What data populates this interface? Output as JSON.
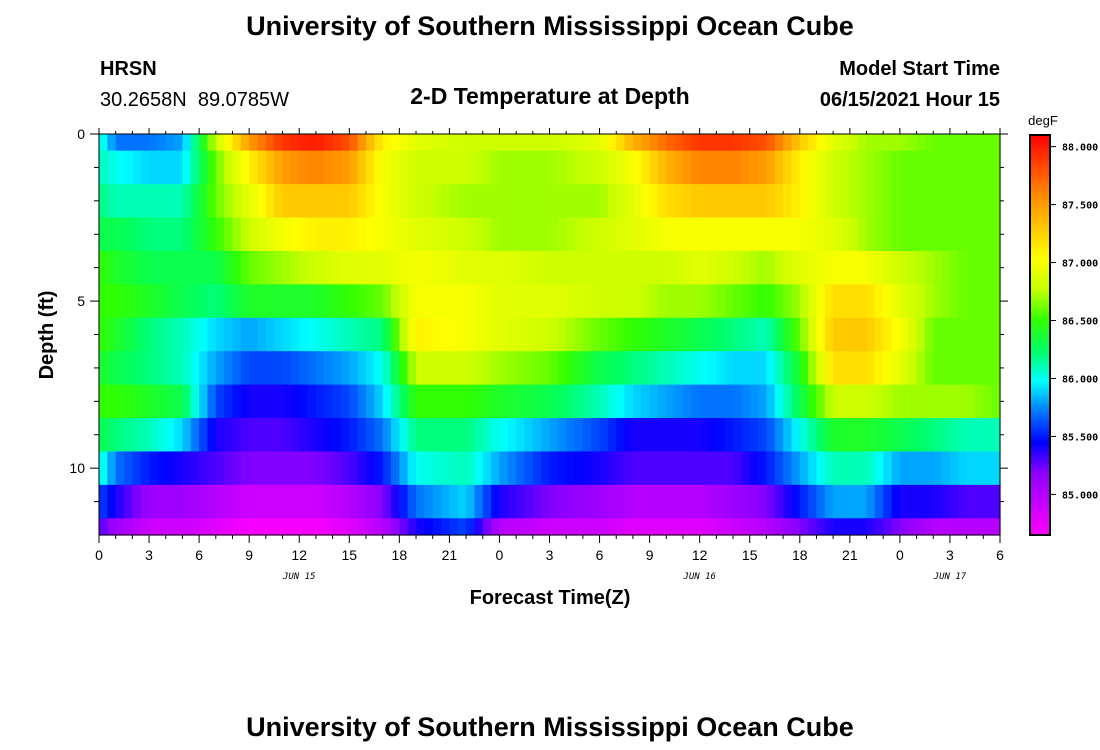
{
  "header": {
    "title": "University of Southern Mississippi Ocean Cube",
    "station": "HRSN",
    "coords": "30.2658N  89.0785W",
    "plot_title": "2-D Temperature at Depth",
    "model_label": "Model Start Time",
    "model_time": "06/15/2021 Hour 15"
  },
  "footer": {
    "title": "University of Southern Mississippi Ocean Cube"
  },
  "colors": {
    "palette": [
      "#ff00ff",
      "#c800ff",
      "#8c00ff",
      "#0000ff",
      "#0078ff",
      "#00ffff",
      "#00ff64",
      "#32ff00",
      "#c8ff00",
      "#ffff00",
      "#ffc800",
      "#ff8c00",
      "#ff4600",
      "#ff0000"
    ]
  },
  "chart_data": {
    "type": "heatmap",
    "title": "2-D Temperature at Depth",
    "xlabel": "Forecast Time(Z)",
    "ylabel": "Depth (ft)",
    "units": "degF",
    "xlim": [
      0,
      54
    ],
    "ylim": [
      0,
      12
    ],
    "x_ticks": [
      0,
      3,
      6,
      9,
      12,
      15,
      18,
      21,
      24,
      27,
      30,
      33,
      36,
      39,
      42,
      45,
      48,
      51,
      54
    ],
    "x_tick_labels": [
      "0",
      "3",
      "6",
      "9",
      "12",
      "15",
      "18",
      "21",
      "0",
      "3",
      "6",
      "9",
      "12",
      "15",
      "18",
      "21",
      "0",
      "3",
      "6"
    ],
    "y_ticks": [
      0,
      5,
      10
    ],
    "y_tick_labels": [
      "0",
      "5",
      "10"
    ],
    "y_minor_ticks": [
      1,
      2,
      3,
      4,
      6,
      7,
      8,
      9,
      11
    ],
    "date_labels": [
      {
        "x": 12,
        "label": "JUN 15"
      },
      {
        "x": 36,
        "label": "JUN 16"
      },
      {
        "x": 51,
        "label": "JUN 17"
      }
    ],
    "colorbar": {
      "min": 84.65,
      "max": 88.1,
      "ticks": [
        85.0,
        85.5,
        86.0,
        86.5,
        87.0,
        87.5,
        88.0
      ],
      "tick_labels": [
        "85.000",
        "85.500",
        "86.000",
        "86.500",
        "87.000",
        "87.500",
        "88.000"
      ]
    },
    "depth_layers": [
      0,
      1,
      2,
      3,
      4,
      5,
      6,
      7,
      8,
      9,
      10,
      11,
      12
    ],
    "keyframes_hours": [
      0,
      1,
      3,
      5,
      7,
      9,
      11,
      13,
      15,
      17,
      19,
      22,
      24,
      27,
      30,
      32,
      34,
      36,
      38,
      40,
      42,
      44,
      46,
      48,
      50,
      52,
      54
    ],
    "temperature_degF": [
      [
        86.1,
        85.7,
        85.7,
        85.8,
        86.8,
        87.5,
        87.9,
        88.0,
        87.8,
        87.1,
        86.9,
        86.8,
        86.8,
        86.8,
        86.9,
        87.4,
        87.7,
        87.9,
        87.9,
        87.8,
        87.3,
        86.9,
        86.7,
        86.7,
        86.6,
        86.6,
        86.6
      ],
      [
        86.1,
        86.0,
        85.9,
        85.9,
        86.6,
        87.1,
        87.5,
        87.6,
        87.5,
        87.0,
        86.8,
        86.8,
        86.7,
        86.7,
        86.8,
        87.0,
        87.4,
        87.6,
        87.6,
        87.5,
        87.1,
        86.8,
        86.7,
        86.6,
        86.6,
        86.6,
        86.6
      ],
      [
        86.2,
        86.1,
        86.1,
        86.1,
        86.6,
        86.9,
        87.3,
        87.3,
        87.3,
        87.0,
        86.8,
        86.7,
        86.7,
        86.7,
        86.7,
        86.9,
        87.2,
        87.3,
        87.3,
        87.3,
        87.1,
        86.8,
        86.7,
        86.6,
        86.6,
        86.6,
        86.6
      ],
      [
        86.3,
        86.3,
        86.2,
        86.2,
        86.5,
        86.8,
        87.0,
        87.1,
        87.1,
        87.0,
        86.9,
        86.8,
        86.7,
        86.7,
        86.8,
        86.9,
        87.0,
        87.0,
        87.0,
        87.0,
        87.0,
        86.9,
        86.7,
        86.6,
        86.6,
        86.6,
        86.6
      ],
      [
        86.5,
        86.4,
        86.3,
        86.3,
        86.3,
        86.6,
        86.7,
        86.8,
        86.9,
        86.9,
        87.0,
        86.9,
        86.9,
        86.8,
        86.8,
        86.8,
        86.8,
        86.9,
        86.8,
        86.7,
        86.9,
        87.0,
        87.0,
        86.8,
        86.7,
        86.6,
        86.6
      ],
      [
        86.5,
        86.5,
        86.4,
        86.3,
        86.2,
        86.4,
        86.4,
        86.4,
        86.5,
        86.6,
        87.0,
        87.0,
        86.9,
        86.9,
        86.8,
        86.8,
        86.7,
        86.7,
        86.6,
        86.5,
        86.7,
        87.2,
        87.2,
        86.9,
        86.7,
        86.6,
        86.6
      ],
      [
        86.5,
        86.4,
        86.2,
        86.1,
        85.9,
        85.8,
        85.9,
        86.0,
        86.1,
        86.2,
        87.1,
        87.0,
        86.9,
        86.8,
        86.6,
        86.5,
        86.4,
        86.3,
        86.2,
        86.1,
        86.6,
        87.3,
        87.3,
        87.0,
        86.6,
        86.6,
        86.6
      ],
      [
        86.4,
        86.3,
        86.2,
        86.1,
        85.8,
        85.6,
        85.6,
        85.7,
        85.8,
        86.0,
        86.8,
        86.8,
        86.7,
        86.6,
        86.3,
        86.2,
        86.1,
        86.0,
        85.9,
        85.9,
        86.4,
        87.2,
        87.2,
        86.9,
        86.6,
        86.6,
        86.6
      ],
      [
        86.5,
        86.5,
        86.4,
        86.3,
        85.6,
        85.4,
        85.4,
        85.5,
        85.6,
        85.9,
        86.5,
        86.5,
        86.4,
        86.3,
        86.1,
        85.9,
        85.8,
        85.7,
        85.7,
        85.8,
        86.3,
        86.8,
        86.8,
        86.7,
        86.7,
        86.7,
        86.6
      ],
      [
        86.3,
        86.2,
        86.1,
        85.9,
        85.4,
        85.3,
        85.3,
        85.4,
        85.5,
        85.7,
        86.2,
        86.2,
        86.0,
        85.8,
        85.6,
        85.4,
        85.4,
        85.4,
        85.5,
        85.6,
        86.0,
        86.4,
        86.4,
        86.3,
        86.2,
        86.1,
        86.1
      ],
      [
        86.1,
        85.7,
        85.5,
        85.4,
        85.3,
        85.2,
        85.2,
        85.2,
        85.3,
        85.5,
        86.0,
        86.1,
        85.8,
        85.5,
        85.4,
        85.3,
        85.3,
        85.3,
        85.3,
        85.5,
        85.8,
        86.1,
        86.1,
        85.8,
        85.8,
        85.9,
        85.9
      ],
      [
        85.6,
        85.4,
        85.1,
        85.1,
        85.0,
        84.9,
        84.9,
        84.9,
        85.0,
        85.2,
        85.7,
        85.9,
        85.4,
        85.2,
        85.1,
        85.0,
        85.0,
        85.0,
        85.1,
        85.2,
        85.5,
        85.8,
        85.8,
        85.4,
        85.4,
        85.3,
        85.3
      ],
      [
        85.3,
        85.1,
        84.9,
        84.9,
        84.8,
        84.7,
        84.7,
        84.7,
        84.8,
        85.0,
        85.4,
        85.6,
        85.0,
        84.9,
        84.9,
        84.8,
        84.8,
        84.8,
        84.9,
        85.0,
        85.2,
        85.4,
        85.4,
        85.2,
        85.0,
        85.0,
        85.0
      ]
    ]
  }
}
